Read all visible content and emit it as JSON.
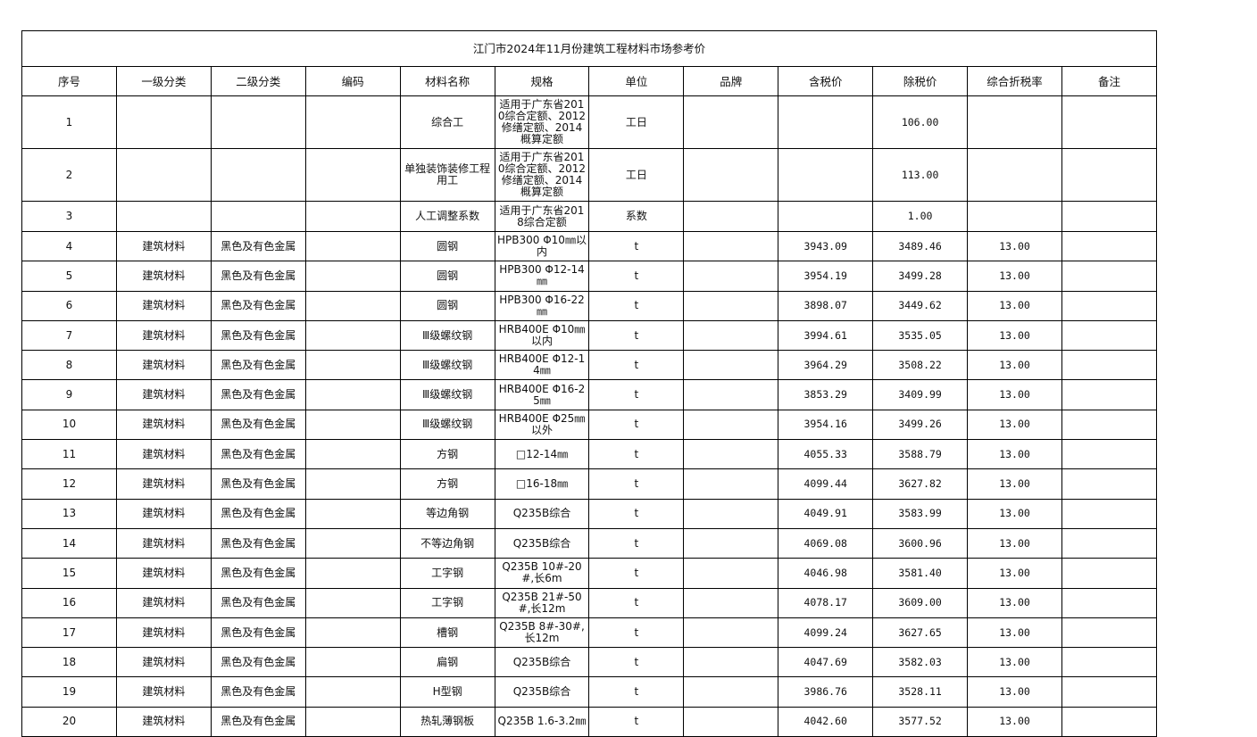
{
  "title": "江门市2024年11月份建筑工程材料市场参考价",
  "headers": [
    "序号",
    "一级分类",
    "二级分类",
    "编码",
    "材料名称",
    "规格",
    "单位",
    "品牌",
    "含税价",
    "除税价",
    "综合折税率",
    "备注"
  ],
  "rows": [
    [
      "1",
      "",
      "",
      "",
      "综合工",
      "适用于广东省2010综合定额、2012修缮定额、2014概算定额",
      "工日",
      "",
      "",
      "106.00",
      "",
      ""
    ],
    [
      "2",
      "",
      "",
      "",
      "单独装饰装修工程用工",
      "适用于广东省2010综合定额、2012修缮定额、2014概算定额",
      "工日",
      "",
      "",
      "113.00",
      "",
      ""
    ],
    [
      "3",
      "",
      "",
      "",
      "人工调整系数",
      "适用于广东省2018综合定额",
      "系数",
      "",
      "",
      "1.00",
      "",
      ""
    ],
    [
      "4",
      "建筑材料",
      "黑色及有色金属",
      "",
      "圆钢",
      "HPB300 Φ10㎜以内",
      "t",
      "",
      "3943.09",
      "3489.46",
      "13.00",
      ""
    ],
    [
      "5",
      "建筑材料",
      "黑色及有色金属",
      "",
      "圆钢",
      "HPB300 Φ12-14㎜",
      "t",
      "",
      "3954.19",
      "3499.28",
      "13.00",
      ""
    ],
    [
      "6",
      "建筑材料",
      "黑色及有色金属",
      "",
      "圆钢",
      "HPB300 Φ16-22㎜",
      "t",
      "",
      "3898.07",
      "3449.62",
      "13.00",
      ""
    ],
    [
      "7",
      "建筑材料",
      "黑色及有色金属",
      "",
      "Ⅲ级螺纹钢",
      "HRB400E Φ10㎜以内",
      "t",
      "",
      "3994.61",
      "3535.05",
      "13.00",
      ""
    ],
    [
      "8",
      "建筑材料",
      "黑色及有色金属",
      "",
      "Ⅲ级螺纹钢",
      "HRB400E Φ12-14㎜",
      "t",
      "",
      "3964.29",
      "3508.22",
      "13.00",
      ""
    ],
    [
      "9",
      "建筑材料",
      "黑色及有色金属",
      "",
      "Ⅲ级螺纹钢",
      "HRB400E Φ16-25㎜",
      "t",
      "",
      "3853.29",
      "3409.99",
      "13.00",
      ""
    ],
    [
      "10",
      "建筑材料",
      "黑色及有色金属",
      "",
      "Ⅲ级螺纹钢",
      "HRB400E Φ25㎜以外",
      "t",
      "",
      "3954.16",
      "3499.26",
      "13.00",
      ""
    ],
    [
      "11",
      "建筑材料",
      "黑色及有色金属",
      "",
      "方钢",
      "□12-14㎜",
      "t",
      "",
      "4055.33",
      "3588.79",
      "13.00",
      ""
    ],
    [
      "12",
      "建筑材料",
      "黑色及有色金属",
      "",
      "方钢",
      "□16-18㎜",
      "t",
      "",
      "4099.44",
      "3627.82",
      "13.00",
      ""
    ],
    [
      "13",
      "建筑材料",
      "黑色及有色金属",
      "",
      "等边角钢",
      "Q235B综合",
      "t",
      "",
      "4049.91",
      "3583.99",
      "13.00",
      ""
    ],
    [
      "14",
      "建筑材料",
      "黑色及有色金属",
      "",
      "不等边角钢",
      "Q235B综合",
      "t",
      "",
      "4069.08",
      "3600.96",
      "13.00",
      ""
    ],
    [
      "15",
      "建筑材料",
      "黑色及有色金属",
      "",
      "工字钢",
      "Q235B 10#-20#,长6m",
      "t",
      "",
      "4046.98",
      "3581.40",
      "13.00",
      ""
    ],
    [
      "16",
      "建筑材料",
      "黑色及有色金属",
      "",
      "工字钢",
      "Q235B 21#-50#,长12m",
      "t",
      "",
      "4078.17",
      "3609.00",
      "13.00",
      ""
    ],
    [
      "17",
      "建筑材料",
      "黑色及有色金属",
      "",
      "槽钢",
      "Q235B 8#-30#,长12m",
      "t",
      "",
      "4099.24",
      "3627.65",
      "13.00",
      ""
    ],
    [
      "18",
      "建筑材料",
      "黑色及有色金属",
      "",
      "扁钢",
      "Q235B综合",
      "t",
      "",
      "4047.69",
      "3582.03",
      "13.00",
      ""
    ],
    [
      "19",
      "建筑材料",
      "黑色及有色金属",
      "",
      "H型钢",
      "Q235B综合",
      "t",
      "",
      "3986.76",
      "3528.11",
      "13.00",
      ""
    ],
    [
      "20",
      "建筑材料",
      "黑色及有色金属",
      "",
      "热轧薄钢板",
      "Q235B 1.6-3.2㎜",
      "t",
      "",
      "4042.60",
      "3577.52",
      "13.00",
      ""
    ]
  ]
}
